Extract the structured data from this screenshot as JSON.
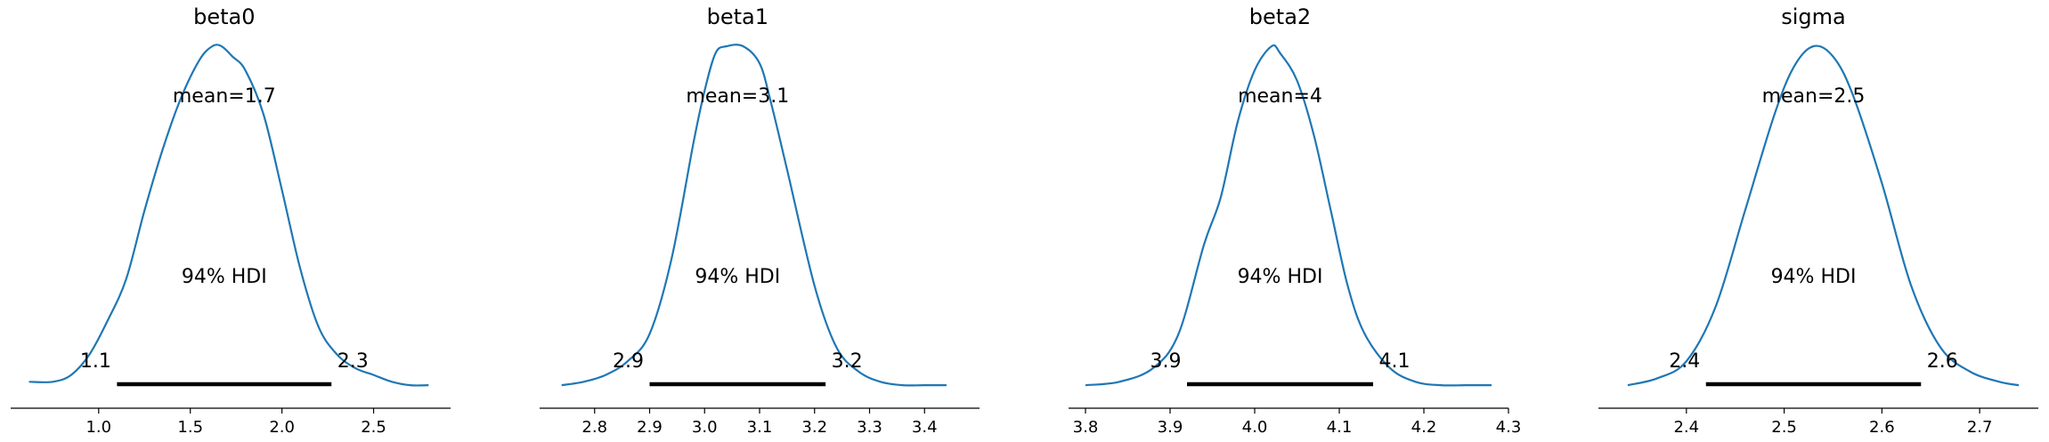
{
  "chart_data": [
    {
      "type": "line",
      "title": "beta0",
      "mean_label": "mean=1.7",
      "hdi_label": "94% HDI",
      "hdi": [
        1.1,
        2.27
      ],
      "hdi_low_label": "1.1",
      "hdi_high_label": "2.3",
      "xlim": [
        0.52,
        2.92
      ],
      "xticks": [
        1.0,
        1.5,
        2.0,
        2.5
      ],
      "xtick_labels": [
        "1.0",
        "1.5",
        "2.0",
        "2.5"
      ],
      "x": [
        0.62,
        0.75,
        0.85,
        0.95,
        1.05,
        1.15,
        1.25,
        1.35,
        1.45,
        1.55,
        1.62,
        1.67,
        1.73,
        1.8,
        1.9,
        2.0,
        2.1,
        2.2,
        2.3,
        2.4,
        2.5,
        2.6,
        2.7,
        2.8
      ],
      "y": [
        0.02,
        0.02,
        0.04,
        0.1,
        0.2,
        0.32,
        0.52,
        0.7,
        0.85,
        0.96,
        1.0,
        1.0,
        0.97,
        0.93,
        0.8,
        0.58,
        0.35,
        0.18,
        0.1,
        0.06,
        0.04,
        0.02,
        0.01,
        0.01
      ]
    },
    {
      "type": "line",
      "title": "beta1",
      "mean_label": "mean=3.1",
      "hdi_label": "94% HDI",
      "hdi": [
        2.9,
        3.22
      ],
      "hdi_low_label": "2.9",
      "hdi_high_label": "3.2",
      "xlim": [
        2.7,
        3.5
      ],
      "xticks": [
        2.8,
        2.9,
        3.0,
        3.1,
        3.2,
        3.3,
        3.4
      ],
      "xtick_labels": [
        "2.8",
        "2.9",
        "3.0",
        "3.1",
        "3.2",
        "3.3",
        "3.4"
      ],
      "x": [
        2.74,
        2.78,
        2.82,
        2.86,
        2.9,
        2.94,
        2.98,
        3.0,
        3.02,
        3.04,
        3.07,
        3.1,
        3.12,
        3.15,
        3.2,
        3.24,
        3.28,
        3.32,
        3.36,
        3.4,
        3.44
      ],
      "y": [
        0.01,
        0.02,
        0.04,
        0.08,
        0.16,
        0.38,
        0.72,
        0.87,
        0.98,
        1.0,
        1.0,
        0.95,
        0.84,
        0.64,
        0.3,
        0.12,
        0.05,
        0.02,
        0.01,
        0.01,
        0.01
      ]
    },
    {
      "type": "line",
      "title": "beta2",
      "mean_label": "mean=4",
      "hdi_label": "94% HDI",
      "hdi": [
        3.92,
        4.14
      ],
      "hdi_low_label": "3.9",
      "hdi_high_label": "4.1",
      "xlim": [
        3.78,
        4.3
      ],
      "xticks": [
        3.8,
        3.9,
        4.0,
        4.1,
        4.2,
        4.3
      ],
      "xtick_labels": [
        "3.8",
        "3.9",
        "4.0",
        "4.1",
        "4.2",
        "4.3"
      ],
      "x": [
        3.8,
        3.84,
        3.88,
        3.91,
        3.94,
        3.96,
        3.98,
        4.0,
        4.02,
        4.03,
        4.05,
        4.07,
        4.09,
        4.11,
        4.13,
        4.16,
        4.19,
        4.22,
        4.25,
        4.28
      ],
      "y": [
        0.01,
        0.02,
        0.06,
        0.16,
        0.42,
        0.56,
        0.78,
        0.93,
        1.0,
        0.98,
        0.9,
        0.74,
        0.52,
        0.3,
        0.16,
        0.06,
        0.02,
        0.01,
        0.01,
        0.01
      ]
    },
    {
      "type": "line",
      "title": "sigma",
      "mean_label": "mean=2.5",
      "hdi_label": "94% HDI",
      "hdi": [
        2.42,
        2.64
      ],
      "hdi_low_label": "2.4",
      "hdi_high_label": "2.6",
      "xlim": [
        2.31,
        2.76
      ],
      "xticks": [
        2.4,
        2.5,
        2.6,
        2.7
      ],
      "xtick_labels": [
        "2.4",
        "2.5",
        "2.6",
        "2.7"
      ],
      "x": [
        2.34,
        2.37,
        2.4,
        2.43,
        2.46,
        2.49,
        2.51,
        2.53,
        2.55,
        2.57,
        2.6,
        2.63,
        2.66,
        2.69,
        2.72,
        2.74
      ],
      "y": [
        0.01,
        0.03,
        0.08,
        0.24,
        0.52,
        0.8,
        0.94,
        1.0,
        0.97,
        0.86,
        0.6,
        0.3,
        0.12,
        0.05,
        0.02,
        0.01
      ]
    }
  ]
}
